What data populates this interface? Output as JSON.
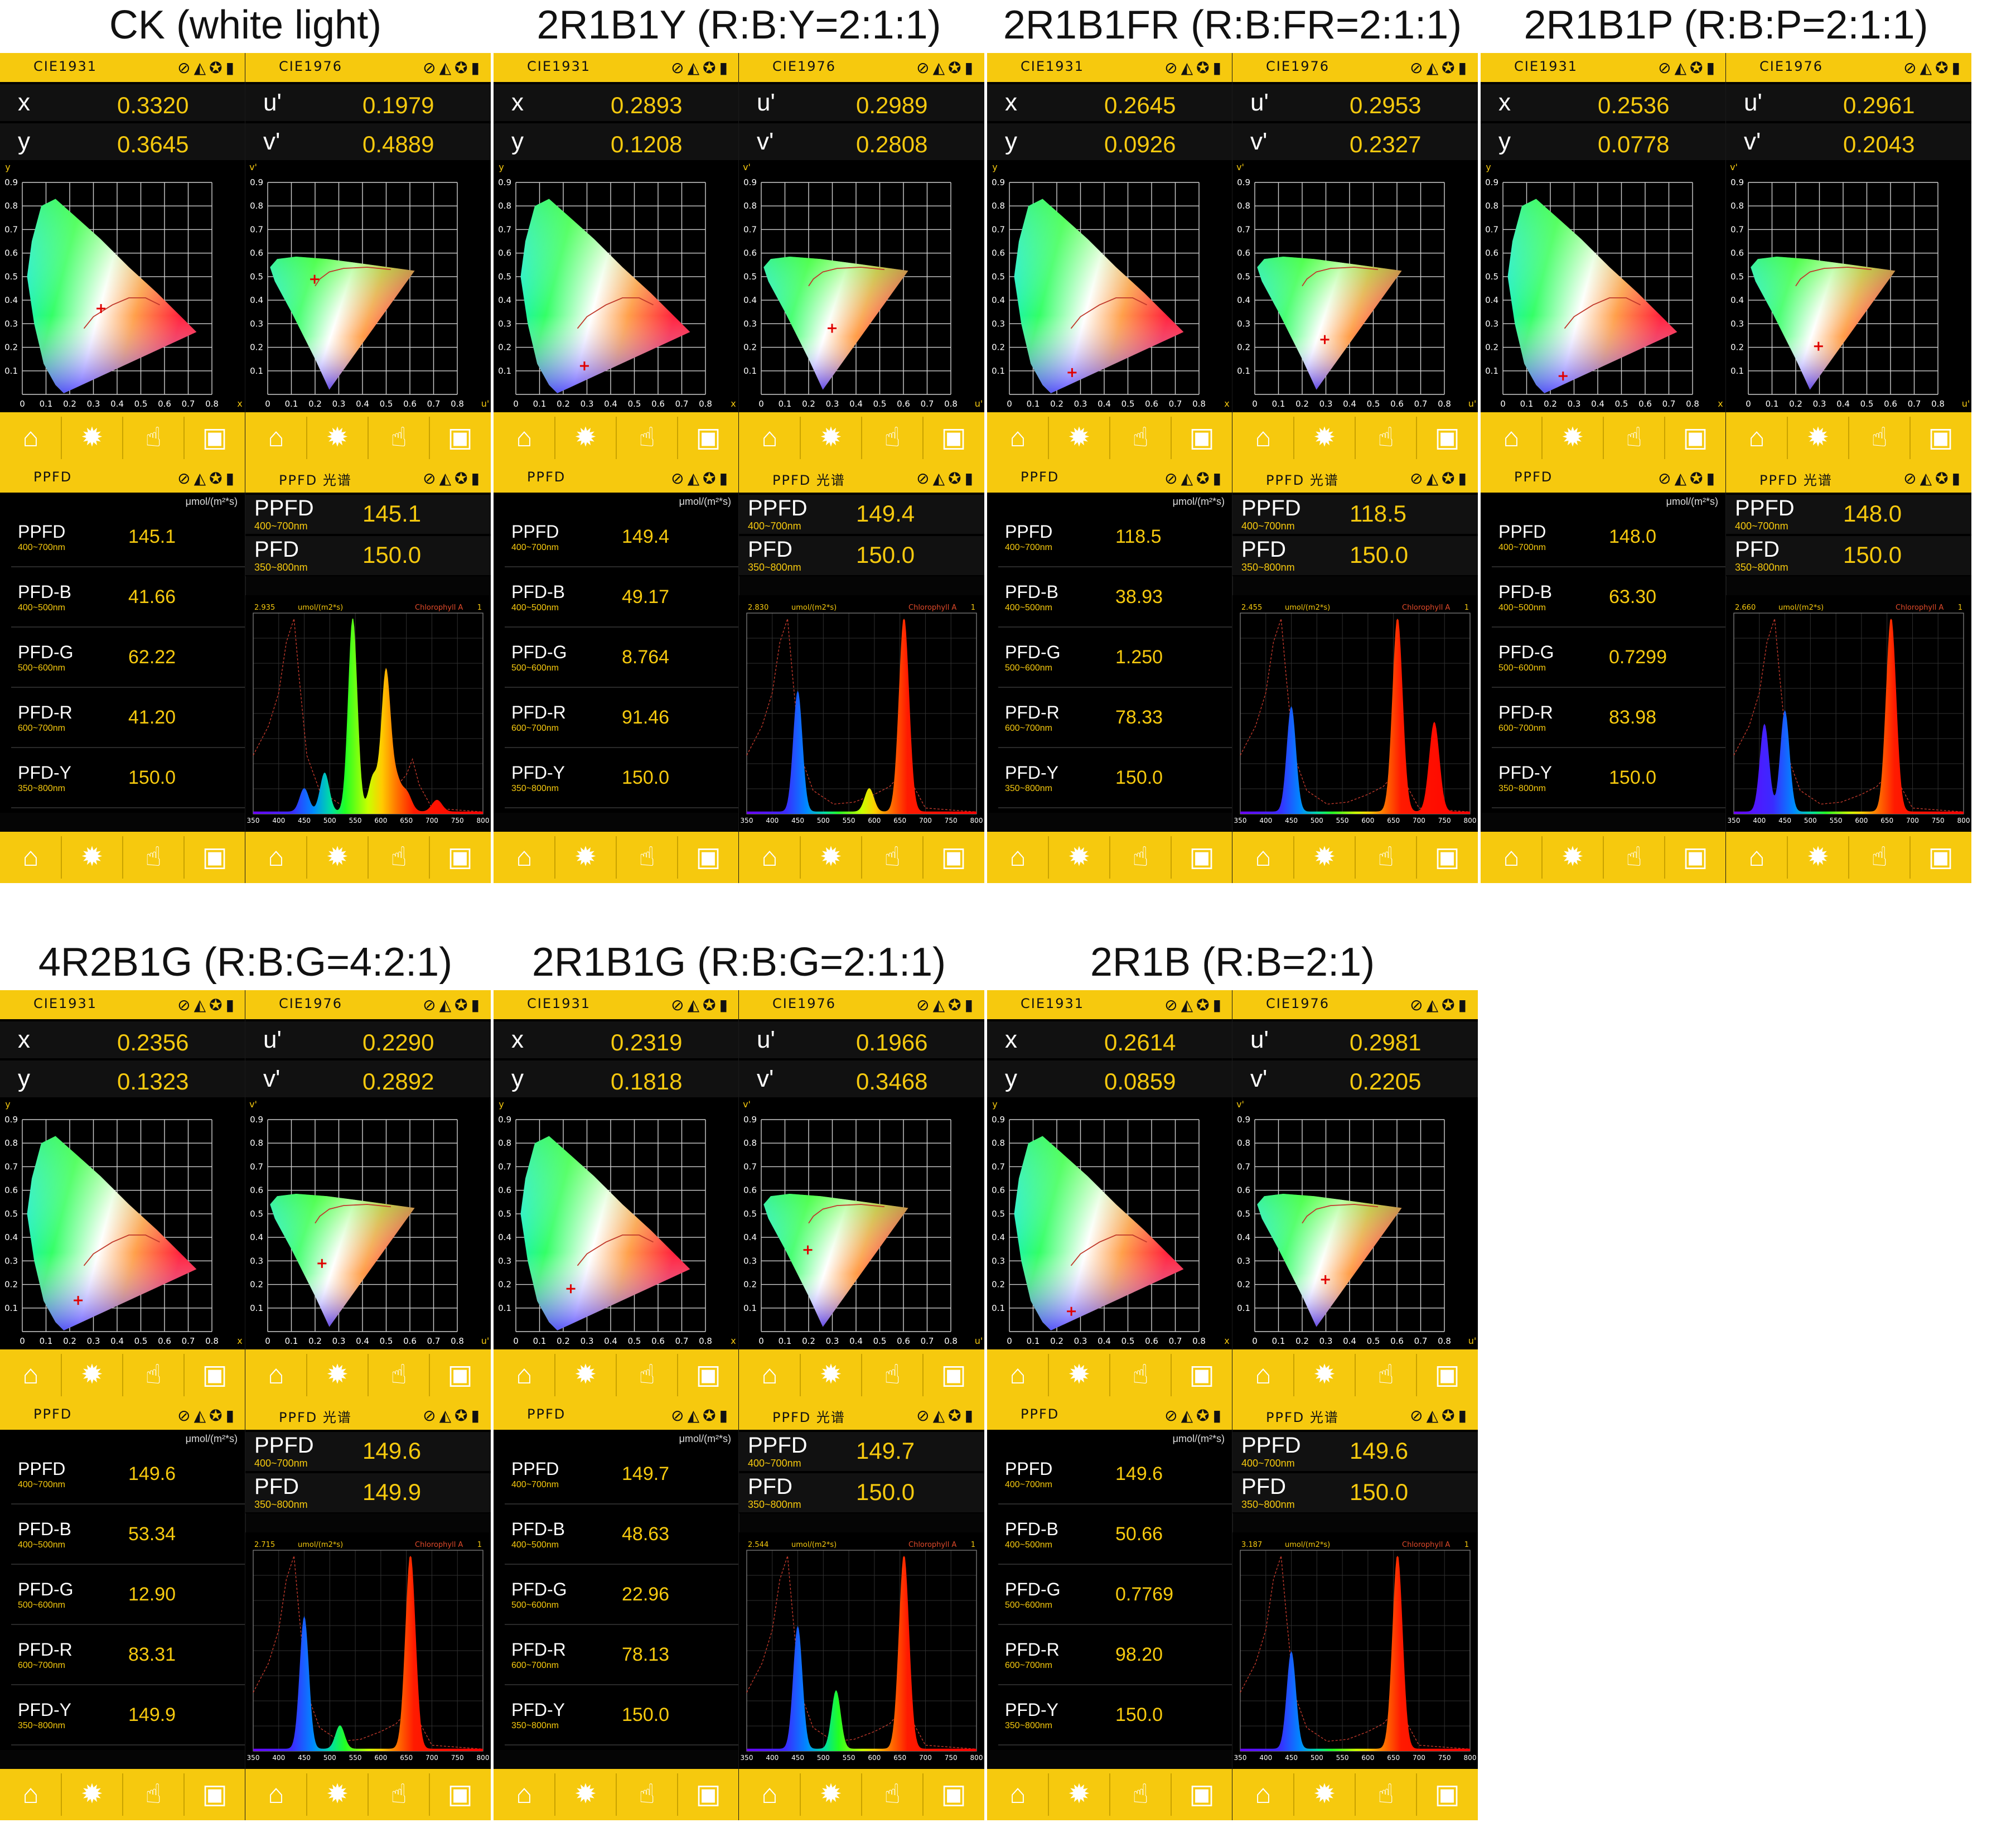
{
  "common": {
    "cie1931_label": "CIE1931",
    "cie1976_label": "CIE1976",
    "ppfd_header": "PPFD",
    "ppfd_spectrum_header": "PPFD 光谱",
    "unit": "μmol/(m²*s)",
    "key_x": "x",
    "key_y": "y",
    "key_u": "u'",
    "key_v": "v'",
    "row_labels": [
      "PPFD",
      "PFD-B",
      "PFD-G",
      "PFD-R",
      "PFD-Y"
    ],
    "row_subs": [
      "400~700nm",
      "400~500nm",
      "500~600nm",
      "600~700nm",
      "350~800nm"
    ],
    "spec_ppfd": "PPFD",
    "spec_ppfd_sub": "400~700nm",
    "spec_pfd": "PFD",
    "spec_pfd_sub": "350~800nm",
    "spec_unit": "umol/(m2*s)",
    "spec_curve_label": "Chlorophyll A",
    "spec_right": "1",
    "icons": {
      "header": [
        "satellite-icon",
        "mode-icon",
        "aperture-icon",
        "battery-icon"
      ],
      "nav": [
        "home-icon",
        "gear-icon",
        "touch-icon",
        "save-icon"
      ]
    },
    "colors": {
      "accent": "#f6c90e",
      "background": "#000000"
    }
  },
  "panels": [
    {
      "title": "CK (white light)",
      "x": "0.3320",
      "y": "0.3645",
      "u": "0.1979",
      "v": "0.4889",
      "ppfd": "145.1",
      "pfd_b": "41.66",
      "pfd_g": "62.22",
      "pfd_r": "41.20",
      "pfd_y": "150.0",
      "spec_ppfd": "145.1",
      "spec_pfd": "150.0",
      "spec_max": "2.935",
      "peaks": [
        [
          450,
          0.12
        ],
        [
          490,
          0.2
        ],
        [
          545,
          1.0
        ],
        [
          585,
          0.18
        ],
        [
          610,
          0.72
        ],
        [
          630,
          0.15
        ],
        [
          650,
          0.1
        ],
        [
          710,
          0.06
        ]
      ]
    },
    {
      "title": "2R1B1Y (R:B:Y=2:1:1)",
      "x": "0.2893",
      "y": "0.1208",
      "u": "0.2989",
      "v": "0.2808",
      "ppfd": "149.4",
      "pfd_b": "49.17",
      "pfd_g": "8.764",
      "pfd_r": "91.46",
      "pfd_y": "150.0",
      "spec_ppfd": "149.4",
      "spec_pfd": "150.0",
      "spec_max": "2.830",
      "peaks": [
        [
          450,
          0.62
        ],
        [
          590,
          0.12
        ],
        [
          658,
          1.0
        ]
      ]
    },
    {
      "title": "2R1B1FR (R:B:FR=2:1:1)",
      "x": "0.2645",
      "y": "0.0926",
      "u": "0.2953",
      "v": "0.2327",
      "ppfd": "118.5",
      "pfd_b": "38.93",
      "pfd_g": "1.250",
      "pfd_r": "78.33",
      "pfd_y": "150.0",
      "spec_ppfd": "118.5",
      "spec_pfd": "150.0",
      "spec_max": "2.455",
      "peaks": [
        [
          450,
          0.54
        ],
        [
          658,
          1.0
        ],
        [
          730,
          0.46
        ]
      ]
    },
    {
      "title": "2R1B1P (R:B:P=2:1:1)",
      "x": "0.2536",
      "y": "0.0778",
      "u": "0.2961",
      "v": "0.2043",
      "ppfd": "148.0",
      "pfd_b": "63.30",
      "pfd_g": "0.7299",
      "pfd_r": "83.98",
      "pfd_y": "150.0",
      "spec_ppfd": "148.0",
      "spec_pfd": "150.0",
      "spec_max": "2.660",
      "peaks": [
        [
          410,
          0.45
        ],
        [
          450,
          0.52
        ],
        [
          658,
          1.0
        ]
      ]
    },
    {
      "title": "4R2B1G (R:B:G=4:2:1)",
      "x": "0.2356",
      "y": "0.1323",
      "u": "0.2290",
      "v": "0.2892",
      "ppfd": "149.6",
      "pfd_b": "53.34",
      "pfd_g": "12.90",
      "pfd_r": "83.31",
      "pfd_y": "149.9",
      "spec_ppfd": "149.6",
      "spec_pfd": "149.9",
      "spec_max": "2.715",
      "peaks": [
        [
          450,
          0.68
        ],
        [
          520,
          0.12
        ],
        [
          658,
          1.0
        ]
      ]
    },
    {
      "title": "2R1B1G (R:B:G=2:1:1)",
      "x": "0.2319",
      "y": "0.1818",
      "u": "0.1966",
      "v": "0.3468",
      "ppfd": "149.7",
      "pfd_b": "48.63",
      "pfd_g": "22.96",
      "pfd_r": "78.13",
      "pfd_y": "150.0",
      "spec_ppfd": "149.7",
      "spec_pfd": "150.0",
      "spec_max": "2.544",
      "peaks": [
        [
          450,
          0.63
        ],
        [
          525,
          0.3
        ],
        [
          658,
          1.0
        ]
      ]
    },
    {
      "title": "2R1B (R:B=2:1)",
      "x": "0.2614",
      "y": "0.0859",
      "u": "0.2981",
      "v": "0.2205",
      "ppfd": "149.6",
      "pfd_b": "50.66",
      "pfd_g": "0.7769",
      "pfd_r": "98.20",
      "pfd_y": "150.0",
      "spec_ppfd": "149.6",
      "spec_pfd": "150.0",
      "spec_max": "3.187",
      "peaks": [
        [
          450,
          0.5
        ],
        [
          658,
          1.0
        ]
      ]
    }
  ]
}
